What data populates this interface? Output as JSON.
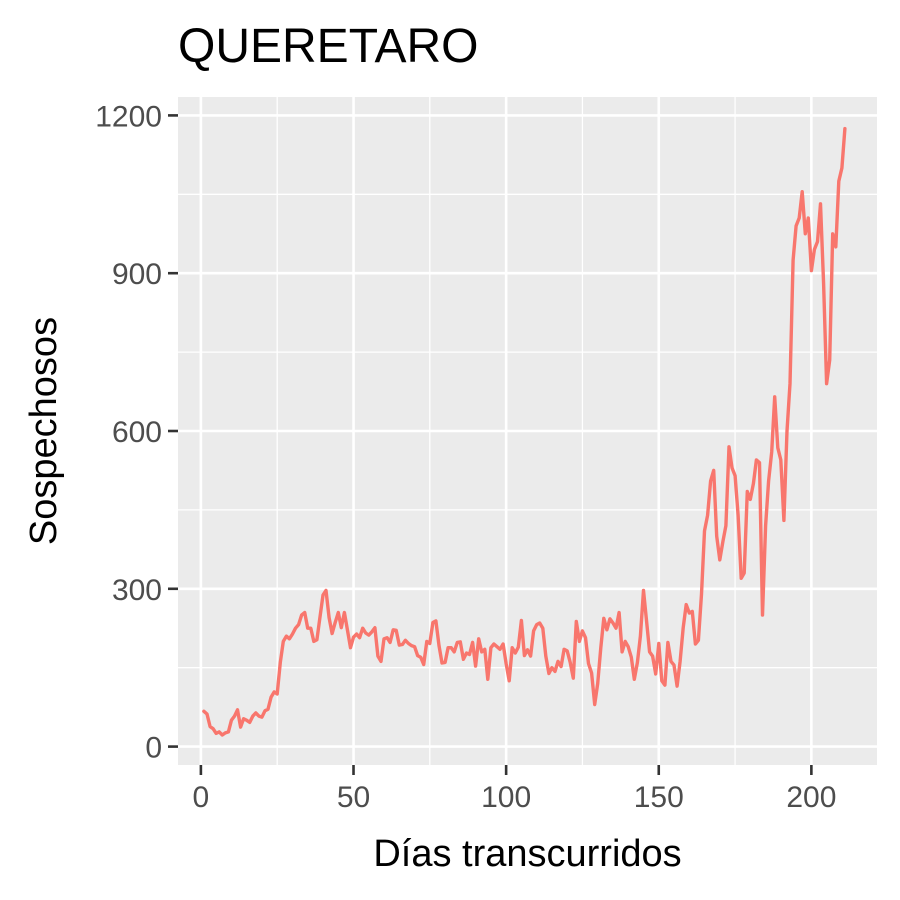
{
  "chart_data": {
    "type": "line",
    "title": "QUERETARO",
    "xlabel": "Días transcurridos",
    "ylabel": "Sospechosos",
    "xlim": [
      -7.5,
      221.5
    ],
    "ylim": [
      -35,
      1235
    ],
    "x_ticks": [
      0,
      50,
      100,
      150,
      200
    ],
    "x_tick_labels": [
      "0",
      "50",
      "100",
      "150",
      "200"
    ],
    "x_minor": [
      25,
      75,
      125,
      175
    ],
    "y_ticks": [
      0,
      300,
      600,
      900,
      1200
    ],
    "y_tick_labels": [
      "0",
      "300",
      "600",
      "900",
      "1200"
    ],
    "y_minor": [
      150,
      450,
      750,
      1050
    ],
    "grid": true,
    "legend": "none",
    "color": "#F8766D",
    "series": [
      {
        "x": [
          1,
          2,
          3,
          4,
          5,
          6,
          7,
          8,
          9,
          10,
          11,
          12,
          13,
          14,
          15,
          16,
          17,
          18,
          19,
          20,
          21,
          22,
          23,
          24,
          25,
          26,
          27,
          28,
          29,
          30,
          31,
          32,
          33,
          34,
          35,
          36,
          37,
          38,
          39,
          40,
          41,
          42,
          43,
          44,
          45,
          46,
          47,
          48,
          49,
          50,
          51,
          52,
          53,
          54,
          55,
          56,
          57,
          58,
          59,
          60,
          61,
          62,
          63,
          64,
          65,
          66,
          67,
          68,
          69,
          70,
          71,
          72,
          73,
          74,
          75,
          76,
          77,
          78,
          79,
          80,
          81,
          82,
          83,
          84,
          85,
          86,
          87,
          88,
          89,
          90,
          91,
          92,
          93,
          94,
          95,
          96,
          97,
          98,
          99,
          100,
          101,
          102,
          103,
          104,
          105,
          106,
          107,
          108,
          109,
          110,
          111,
          112,
          113,
          114,
          115,
          116,
          117,
          118,
          119,
          120,
          121,
          122,
          123,
          124,
          125,
          126,
          127,
          128,
          129,
          130,
          131,
          132,
          133,
          134,
          135,
          136,
          137,
          138,
          139,
          140,
          141,
          142,
          143,
          144,
          145,
          146,
          147,
          148,
          149,
          150,
          151,
          152,
          153,
          154,
          155,
          156,
          157,
          158,
          159,
          160,
          161,
          162,
          163,
          164,
          165,
          166,
          167,
          168,
          169,
          170,
          171,
          172,
          173,
          174,
          175,
          176,
          177,
          178,
          179,
          180,
          181,
          182,
          183,
          184,
          185,
          186,
          187,
          188,
          189,
          190,
          191,
          192,
          193,
          194,
          195,
          196,
          197,
          198,
          199,
          200,
          201,
          202,
          203,
          204,
          205,
          206,
          207,
          208,
          209,
          210,
          211
        ],
        "values": [
          67,
          62,
          38,
          34,
          25,
          28,
          22,
          26,
          28,
          50,
          58,
          70,
          37,
          53,
          50,
          46,
          58,
          64,
          58,
          56,
          68,
          71,
          94,
          104,
          100,
          160,
          200,
          210,
          205,
          214,
          225,
          232,
          250,
          255,
          225,
          225,
          200,
          203,
          245,
          288,
          297,
          245,
          215,
          236,
          255,
          226,
          255,
          222,
          188,
          208,
          214,
          207,
          225,
          216,
          212,
          218,
          226,
          172,
          162,
          205,
          207,
          198,
          222,
          221,
          193,
          194,
          202,
          196,
          192,
          190,
          173,
          170,
          156,
          200,
          196,
          236,
          239,
          192,
          159,
          160,
          188,
          188,
          180,
          198,
          199,
          166,
          178,
          175,
          198,
          153,
          205,
          180,
          185,
          128,
          188,
          195,
          190,
          185,
          195,
          158,
          125,
          188,
          178,
          189,
          240,
          173,
          184,
          172,
          220,
          232,
          235,
          225,
          172,
          139,
          150,
          143,
          162,
          152,
          185,
          182,
          160,
          130,
          238,
          200,
          220,
          207,
          158,
          140,
          80,
          120,
          188,
          244,
          222,
          243,
          235,
          225,
          255,
          180,
          200,
          190,
          170,
          128,
          160,
          210,
          297,
          240,
          180,
          172,
          138,
          196,
          125,
          117,
          198,
          162,
          155,
          115,
          162,
          226,
          270,
          254,
          257,
          195,
          202,
          290,
          410,
          440,
          505,
          525,
          400,
          355,
          390,
          420,
          570,
          530,
          515,
          440,
          320,
          330,
          485,
          470,
          500,
          545,
          540,
          250,
          420,
          505,
          560,
          665,
          568,
          545,
          430,
          600,
          690,
          925,
          990,
          1005,
          1055,
          975,
          1005,
          905,
          945,
          960,
          1032,
          880,
          690,
          735,
          975,
          950,
          1075,
          1100,
          1175
        ]
      }
    ]
  }
}
